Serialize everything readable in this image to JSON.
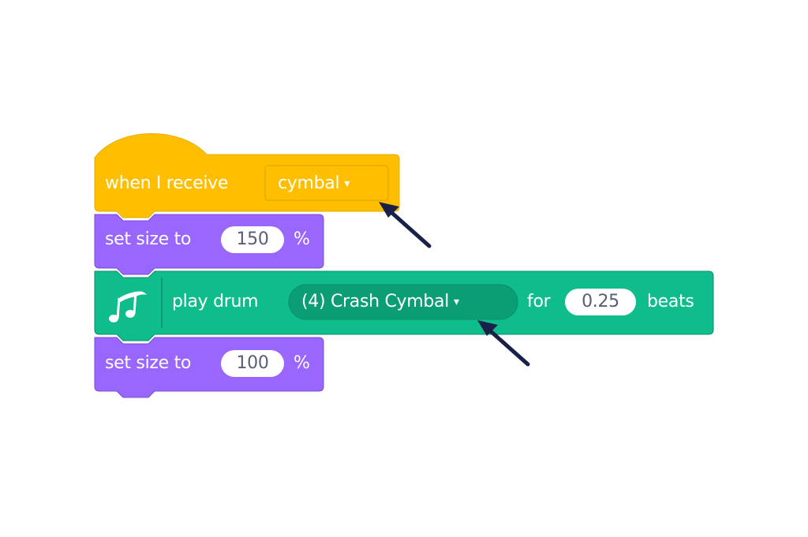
{
  "colors": {
    "events": "#ffbf00",
    "events_dark": "#e6ac00",
    "looks": "#9966ff",
    "looks_dark": "#774dcb",
    "music": "#0fbd8c",
    "music_dark": "#0b8e69",
    "arrow": "#1a2148"
  },
  "blocks": {
    "when_receive": {
      "label": "when I receive",
      "message": "cymbal",
      "caret": "▾"
    },
    "set_size_1": {
      "label": "set size to",
      "value": "150",
      "unit": "%"
    },
    "play_drum": {
      "icon": "music-notes-icon",
      "label": "play drum",
      "drum": "(4) Crash Cymbal",
      "caret": "▾",
      "for_label": "for",
      "beats_value": "0.25",
      "beats_label": "beats"
    },
    "set_size_2": {
      "label": "set size to",
      "value": "100",
      "unit": "%"
    }
  }
}
